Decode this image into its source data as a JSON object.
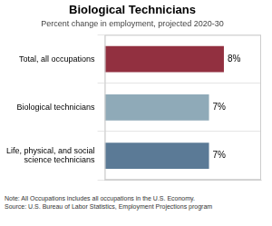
{
  "chart_data": {
    "type": "bar",
    "orientation": "horizontal",
    "title": "Biological Technicians",
    "subtitle": "Percent change in employment, projected 2020-30",
    "categories": [
      "Life, physical, and social\nscience technicians",
      "Biological technicians",
      "Total, all occupations"
    ],
    "values": [
      7,
      7,
      8
    ],
    "value_labels": [
      "7%",
      "7%",
      "8%"
    ],
    "colors": [
      "#5b7a96",
      "#8faab8",
      "#923040"
    ],
    "xlim": [
      0,
      10.5
    ],
    "grid": true,
    "data_labels": true,
    "tick_labels": "y",
    "annotations": [
      "Note: All Occupations includes all occupations in the U.S. Economy.\nSource: U.S. Bureau of Labor Statistics, Employment Projections program"
    ]
  }
}
